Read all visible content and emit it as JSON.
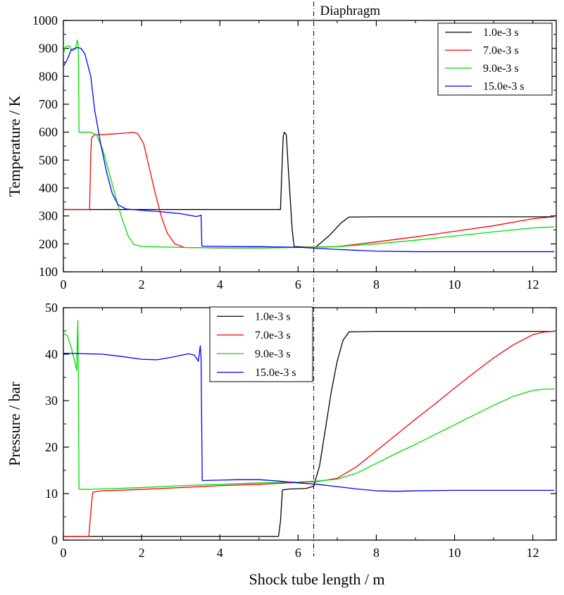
{
  "chart_data": [
    {
      "type": "line",
      "id": "temperature",
      "ylabel": "Temperature / K",
      "xlabel": "",
      "xlim": [
        0,
        12.6
      ],
      "ylim": [
        100,
        1000
      ],
      "xticks": [
        0,
        2,
        4,
        6,
        8,
        10,
        12
      ],
      "yticks": [
        100,
        200,
        300,
        400,
        500,
        600,
        700,
        800,
        900,
        1000
      ],
      "legend_position": "top-right",
      "series": [
        {
          "name": "1.0e-3 s",
          "color": "#000000",
          "points": [
            [
              0,
              323
            ],
            [
              5.55,
              323
            ],
            [
              5.58,
              440
            ],
            [
              5.62,
              585
            ],
            [
              5.65,
              600
            ],
            [
              5.7,
              590
            ],
            [
              5.75,
              470
            ],
            [
              5.85,
              250
            ],
            [
              5.9,
              190
            ],
            [
              6.45,
              188
            ],
            [
              6.8,
              230
            ],
            [
              7.1,
              275
            ],
            [
              7.3,
              296
            ],
            [
              8,
              297
            ],
            [
              10,
              297
            ],
            [
              12.55,
              297
            ]
          ]
        },
        {
          "name": "7.0e-3 s",
          "color": "#ff0000",
          "points": [
            [
              0,
              323
            ],
            [
              0.67,
              323
            ],
            [
              0.7,
              520
            ],
            [
              0.72,
              580
            ],
            [
              0.8,
              590
            ],
            [
              1.2,
              593
            ],
            [
              1.6,
              597
            ],
            [
              1.8,
              599
            ],
            [
              1.9,
              595
            ],
            [
              2.05,
              560
            ],
            [
              2.2,
              470
            ],
            [
              2.35,
              380
            ],
            [
              2.5,
              300
            ],
            [
              2.65,
              240
            ],
            [
              2.85,
              200
            ],
            [
              3.1,
              187
            ],
            [
              4,
              185
            ],
            [
              5,
              185
            ],
            [
              6,
              188
            ],
            [
              7,
              190
            ],
            [
              8,
              207
            ],
            [
              9,
              225
            ],
            [
              10,
              245
            ],
            [
              11,
              265
            ],
            [
              12,
              290
            ],
            [
              12.55,
              297
            ]
          ]
        },
        {
          "name": "9.0e-3 s",
          "color": "#00dd00",
          "points": [
            [
              0,
              880
            ],
            [
              0.05,
              905
            ],
            [
              0.15,
              910
            ],
            [
              0.22,
              892
            ],
            [
              0.3,
              895
            ],
            [
              0.36,
              930
            ],
            [
              0.38,
              905
            ],
            [
              0.39,
              800
            ],
            [
              0.4,
              600
            ],
            [
              0.45,
              600
            ],
            [
              0.7,
              600
            ],
            [
              0.85,
              590
            ],
            [
              1,
              540
            ],
            [
              1.2,
              440
            ],
            [
              1.35,
              360
            ],
            [
              1.5,
              290
            ],
            [
              1.65,
              230
            ],
            [
              1.8,
              198
            ],
            [
              2,
              191
            ],
            [
              2.5,
              189
            ],
            [
              3.5,
              186
            ],
            [
              5,
              185
            ],
            [
              6,
              187
            ],
            [
              7,
              190
            ],
            [
              8,
              200
            ],
            [
              9,
              213
            ],
            [
              10,
              228
            ],
            [
              11,
              243
            ],
            [
              12,
              257
            ],
            [
              12.55,
              261
            ]
          ]
        },
        {
          "name": "15.0e-3 s",
          "color": "#0000ff",
          "points": [
            [
              0,
              835
            ],
            [
              0.1,
              860
            ],
            [
              0.2,
              895
            ],
            [
              0.35,
              903
            ],
            [
              0.45,
              900
            ],
            [
              0.55,
              880
            ],
            [
              0.7,
              800
            ],
            [
              0.8,
              680
            ],
            [
              0.95,
              560
            ],
            [
              1.1,
              460
            ],
            [
              1.25,
              380
            ],
            [
              1.4,
              340
            ],
            [
              1.6,
              325
            ],
            [
              2,
              320
            ],
            [
              2.5,
              315
            ],
            [
              3,
              308
            ],
            [
              3.4,
              298
            ],
            [
              3.47,
              300
            ],
            [
              3.52,
              303
            ],
            [
              3.54,
              192
            ],
            [
              4,
              191
            ],
            [
              5,
              190
            ],
            [
              6,
              188
            ],
            [
              7,
              180
            ],
            [
              8,
              174
            ],
            [
              9,
              172
            ],
            [
              10,
              172
            ],
            [
              11,
              172
            ],
            [
              12.55,
              172
            ]
          ]
        }
      ]
    },
    {
      "type": "line",
      "id": "pressure",
      "ylabel": "Pressure / bar",
      "xlabel": "Shock tube length / m",
      "xlim": [
        0,
        12.6
      ],
      "ylim": [
        0,
        50
      ],
      "xticks": [
        0,
        2,
        4,
        6,
        8,
        10,
        12
      ],
      "yticks": [
        0,
        10,
        20,
        30,
        40,
        50
      ],
      "legend_position": "top-center",
      "series": [
        {
          "name": "1.0e-3 s",
          "color": "#000000",
          "points": [
            [
              0,
              0.8
            ],
            [
              5.5,
              0.8
            ],
            [
              5.55,
              4
            ],
            [
              5.6,
              10.8
            ],
            [
              5.8,
              11
            ],
            [
              6.2,
              11.1
            ],
            [
              6.4,
              11.6
            ],
            [
              6.55,
              16
            ],
            [
              6.7,
              24
            ],
            [
              6.85,
              32
            ],
            [
              7,
              38.5
            ],
            [
              7.15,
              43
            ],
            [
              7.3,
              44.8
            ],
            [
              8,
              44.9
            ],
            [
              10,
              44.9
            ],
            [
              12.55,
              44.9
            ]
          ]
        },
        {
          "name": "7.0e-3 s",
          "color": "#ff0000",
          "points": [
            [
              0,
              0.8
            ],
            [
              0.65,
              0.8
            ],
            [
              0.7,
              6
            ],
            [
              0.75,
              10.3
            ],
            [
              1,
              10.6
            ],
            [
              2,
              10.9
            ],
            [
              3,
              11.3
            ],
            [
              4,
              11.7
            ],
            [
              5,
              12
            ],
            [
              6,
              12.4
            ],
            [
              6.5,
              12.6
            ],
            [
              7,
              13.3
            ],
            [
              7.5,
              15.8
            ],
            [
              8,
              19.2
            ],
            [
              8.5,
              22.6
            ],
            [
              9,
              26
            ],
            [
              9.5,
              29.3
            ],
            [
              10,
              32.7
            ],
            [
              10.5,
              36
            ],
            [
              11,
              39.2
            ],
            [
              11.5,
              42
            ],
            [
              12,
              44.2
            ],
            [
              12.3,
              44.8
            ],
            [
              12.55,
              44.9
            ]
          ]
        },
        {
          "name": "9.0e-3 s",
          "color": "#00dd00",
          "points": [
            [
              0,
              44.5
            ],
            [
              0.1,
              44
            ],
            [
              0.2,
              41.5
            ],
            [
              0.3,
              38
            ],
            [
              0.34,
              36.5
            ],
            [
              0.36,
              44.5
            ],
            [
              0.37,
              47.2
            ],
            [
              0.38,
              38
            ],
            [
              0.39,
              25
            ],
            [
              0.4,
              11
            ],
            [
              0.5,
              10.9
            ],
            [
              1,
              11
            ],
            [
              2,
              11.3
            ],
            [
              3,
              11.7
            ],
            [
              4,
              12
            ],
            [
              5,
              12.3
            ],
            [
              6,
              12.5
            ],
            [
              6.5,
              12.7
            ],
            [
              7,
              13.1
            ],
            [
              7.5,
              14.4
            ],
            [
              8,
              16.5
            ],
            [
              8.5,
              18.6
            ],
            [
              9,
              20.6
            ],
            [
              9.5,
              22.7
            ],
            [
              10,
              24.8
            ],
            [
              10.5,
              26.9
            ],
            [
              11,
              29
            ],
            [
              11.5,
              30.9
            ],
            [
              12,
              32.2
            ],
            [
              12.3,
              32.5
            ],
            [
              12.55,
              32.5
            ]
          ]
        },
        {
          "name": "15.0e-3 s",
          "color": "#0000ff",
          "points": [
            [
              0,
              40.2
            ],
            [
              0.5,
              40.1
            ],
            [
              1,
              40
            ],
            [
              1.5,
              39.5
            ],
            [
              2,
              38.9
            ],
            [
              2.4,
              38.8
            ],
            [
              2.8,
              39.4
            ],
            [
              3.2,
              40.1
            ],
            [
              3.35,
              39.8
            ],
            [
              3.45,
              38.5
            ],
            [
              3.5,
              41.8
            ],
            [
              3.52,
              39
            ],
            [
              3.55,
              12.8
            ],
            [
              4,
              12.9
            ],
            [
              4.5,
              13
            ],
            [
              5,
              13
            ],
            [
              5.5,
              12.7
            ],
            [
              6,
              12.3
            ],
            [
              6.5,
              12
            ],
            [
              7,
              11.5
            ],
            [
              7.5,
              11
            ],
            [
              8,
              10.6
            ],
            [
              8.5,
              10.5
            ],
            [
              9,
              10.6
            ],
            [
              10,
              10.7
            ],
            [
              11,
              10.7
            ],
            [
              12.55,
              10.7
            ]
          ]
        }
      ]
    }
  ],
  "annotation": {
    "label": "Diaphragm",
    "x": 6.4
  }
}
